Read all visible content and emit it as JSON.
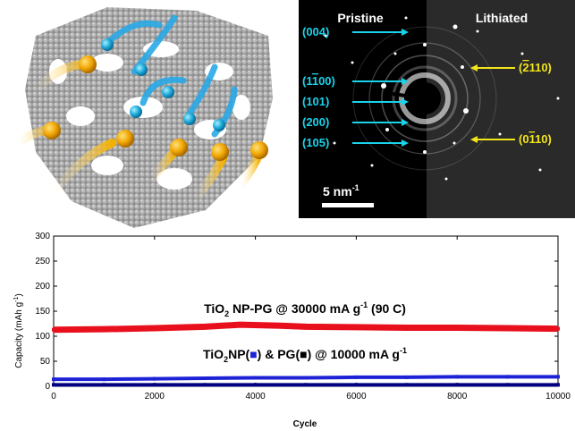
{
  "saed": {
    "pristine_label": "Pristine",
    "lithiated_label": "Lithiated",
    "pristine_planes": [
      {
        "h": "(004)",
        "bar": "",
        "t": ""
      },
      {
        "h": "(1",
        "bar": "1",
        "t": "00)"
      },
      {
        "h": "(101)",
        "bar": "",
        "t": ""
      },
      {
        "h": "(200)",
        "bar": "",
        "t": ""
      },
      {
        "h": "(105)",
        "bar": "",
        "t": ""
      }
    ],
    "lithiated_planes": [
      {
        "h": "(",
        "bar": "2",
        "t": "110)"
      },
      {
        "h": "(0",
        "bar": "1",
        "t": "10)"
      }
    ],
    "scale_text": "5 nm",
    "scale_exp": "-1",
    "colors": {
      "pristine": "#19d3ea",
      "lithiated": "#f2e41c"
    }
  },
  "chart_data": {
    "type": "scatter",
    "xlabel": "Cycle",
    "ylabel": "Capacity (mAh g",
    "ylabel_sup": "-1",
    "ylabel_end": ")",
    "xlim": [
      0,
      10000
    ],
    "ylim": [
      0,
      300
    ],
    "xticks": [
      0,
      2000,
      4000,
      6000,
      8000,
      10000
    ],
    "yticks": [
      0,
      50,
      100,
      150,
      200,
      250,
      300
    ],
    "grid": false,
    "annotations": [
      {
        "parts": [
          "TiO",
          "2",
          " NP-PG  @ 30000 mA g",
          "-1",
          " (90 C)"
        ]
      },
      {
        "parts": [
          "TiO",
          "2",
          "NP(",
          "■",
          ") & PG(",
          "■",
          ")  @ 10000 mA g",
          "-1"
        ]
      }
    ],
    "series": [
      {
        "color": "#e8101c",
        "x": [
          0,
          1000,
          2000,
          3000,
          3700,
          4500,
          5000,
          6000,
          7000,
          8000,
          9000,
          10000
        ],
        "y": [
          113,
          114,
          116,
          119,
          123,
          121,
          119,
          118,
          117,
          117,
          116,
          115
        ]
      },
      {
        "color": "#1e22d6",
        "x": [
          0,
          1000,
          2000,
          3000,
          4000,
          5000,
          6000,
          7000,
          8000,
          9000,
          10000
        ],
        "y": [
          14,
          14,
          15,
          16,
          17,
          17,
          18,
          18,
          19,
          19,
          19
        ]
      },
      {
        "color": "#000080",
        "x": [
          0,
          1000,
          2000,
          3000,
          4000,
          5000,
          6000,
          7000,
          8000,
          9000,
          10000
        ],
        "y": [
          3,
          3,
          3,
          3,
          3,
          3,
          3,
          3,
          3,
          3,
          3
        ]
      }
    ]
  }
}
